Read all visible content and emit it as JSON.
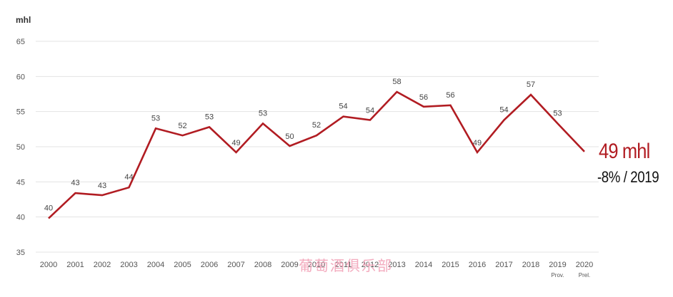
{
  "chart_data": {
    "type": "line",
    "ylabel": "mhl",
    "ylim": [
      35,
      65
    ],
    "yticks": [
      35,
      40,
      45,
      50,
      55,
      60,
      65
    ],
    "grid": true,
    "categories": [
      "2000",
      "2001",
      "2002",
      "2003",
      "2004",
      "2005",
      "2006",
      "2007",
      "2008",
      "2009",
      "2010",
      "2011",
      "2012",
      "2013",
      "2014",
      "2015",
      "2016",
      "2017",
      "2018",
      "2019",
      "2020"
    ],
    "category_sublabels": {
      "19": "Prov.",
      "20": "Prel."
    },
    "series": [
      {
        "color": "#b11c22",
        "values": [
          39.8,
          43.4,
          43.1,
          44.2,
          52.6,
          51.6,
          52.8,
          49.2,
          53.3,
          50.1,
          51.6,
          54.3,
          53.8,
          57.8,
          55.7,
          55.9,
          49.2,
          53.8,
          57.4,
          53.3,
          49.3
        ],
        "data_labels": [
          "40",
          "43",
          "43",
          "44",
          "53",
          "52",
          "53",
          "49",
          "53",
          "50",
          "52",
          "54",
          "54",
          "58",
          "56",
          "56",
          "49",
          "54",
          "57",
          "53",
          ""
        ]
      }
    ]
  },
  "callout": {
    "value": "49 mhl",
    "change": "-8% / 2019",
    "value_color": "#b11c22"
  },
  "watermark": "葡萄酒俱乐部"
}
